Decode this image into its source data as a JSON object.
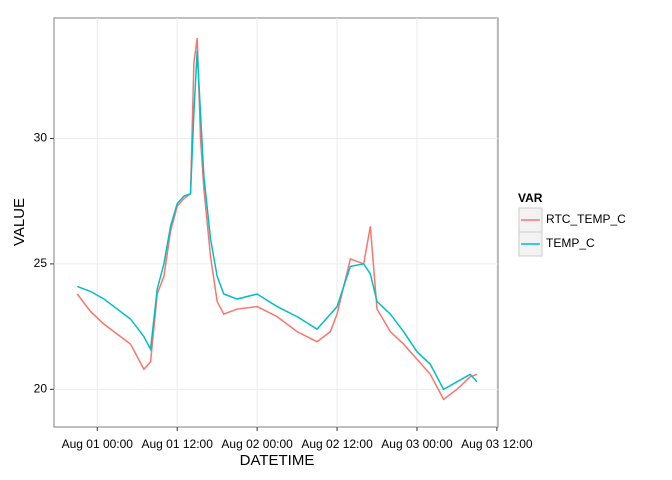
{
  "chart_data": {
    "type": "line",
    "x_label": "DATETIME",
    "y_label": "VALUE",
    "legend_title": "VAR",
    "x": [
      "Jul 31 21:00",
      "Jul 31 23:00",
      "Aug 01 01:00",
      "Aug 01 03:00",
      "Aug 01 05:00",
      "Aug 01 07:00",
      "Aug 01 08:00",
      "Aug 01 09:00",
      "Aug 01 10:00",
      "Aug 01 11:00",
      "Aug 01 12:00",
      "Aug 01 13:00",
      "Aug 01 14:00",
      "Aug 01 14:30",
      "Aug 01 15:00",
      "Aug 01 15:30",
      "Aug 01 16:00",
      "Aug 01 17:00",
      "Aug 01 18:00",
      "Aug 01 19:00",
      "Aug 01 21:00",
      "Aug 02 00:00",
      "Aug 02 03:00",
      "Aug 02 06:00",
      "Aug 02 09:00",
      "Aug 02 11:00",
      "Aug 02 12:00",
      "Aug 02 14:00",
      "Aug 02 16:00",
      "Aug 02 17:00",
      "Aug 02 18:00",
      "Aug 02 20:00",
      "Aug 02 22:00",
      "Aug 03 00:00",
      "Aug 03 02:00",
      "Aug 03 04:00",
      "Aug 03 06:00",
      "Aug 03 08:00",
      "Aug 03 09:00"
    ],
    "series": [
      {
        "name": "RTC_TEMP_C",
        "color": "#F8766D",
        "values": [
          23.8,
          23.1,
          22.6,
          22.2,
          21.8,
          20.8,
          21.1,
          23.8,
          24.5,
          26.3,
          27.3,
          27.6,
          27.8,
          33.0,
          34.0,
          30,
          28.0,
          25.3,
          23.5,
          23.0,
          23.2,
          23.3,
          22.9,
          22.3,
          21.9,
          22.3,
          23.0,
          25.2,
          25.0,
          26.5,
          23.2,
          22.3,
          21.8,
          21.2,
          20.6,
          19.6,
          20.0,
          20.5,
          20.6
        ]
      },
      {
        "name": "TEMP_C",
        "color": "#00BFC4",
        "values": [
          24.1,
          23.9,
          23.6,
          23.2,
          22.8,
          22.1,
          21.6,
          24.0,
          25.0,
          26.5,
          27.4,
          27.7,
          27.8,
          31,
          33.5,
          31,
          28.5,
          26,
          24.5,
          23.8,
          23.6,
          23.8,
          23.3,
          22.9,
          22.4,
          23.0,
          23.3,
          24.9,
          25.0,
          24.6,
          23.5,
          23.0,
          22.3,
          21.5,
          21.0,
          20.0,
          20.3,
          20.6,
          20.3
        ]
      }
    ],
    "xlim": [
      "Jul 31 17:30",
      "Aug 03 12:10"
    ],
    "xticks": [
      "Aug 01 00:00",
      "Aug 01 12:00",
      "Aug 02 00:00",
      "Aug 02 12:00",
      "Aug 03 00:00",
      "Aug 03 12:00"
    ],
    "ylim": [
      18.5,
      34.8
    ],
    "yticks": [
      20,
      25,
      30
    ],
    "grid": true,
    "legend": "right"
  }
}
